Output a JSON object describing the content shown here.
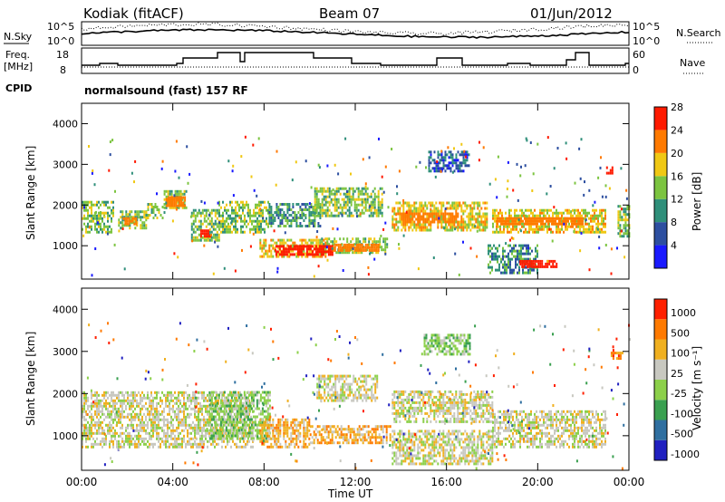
{
  "header": {
    "radar": "Kodiak (fitACF)",
    "beam": "Beam 07",
    "date": "01/Jun/2012"
  },
  "top_panels": {
    "nsky_label": "N.Sky",
    "nsearch_label": "N.Search",
    "nsky_ticks": [
      "10^5",
      "10^0"
    ],
    "nsearch_ticks": [
      "10^5",
      "10^0"
    ],
    "freq_label_1": "Freq.",
    "freq_label_2": "[MHz]",
    "freq_ticks": [
      "18",
      "8"
    ],
    "nave_label": "Nave",
    "nave_ticks": [
      "60",
      "0"
    ],
    "cpid_label": "CPID",
    "cpid_text": "normalsound (fast) 157 RF"
  },
  "chart_data": [
    {
      "type": "heatmap",
      "panel": "power",
      "ylabel": "Slant Range [km]",
      "yticks": [
        "1000",
        "2000",
        "3000",
        "4000"
      ],
      "ylim": [
        180,
        4500
      ],
      "colorbar_label": "Power [dB]",
      "colorbar_ticks": [
        "4",
        "8",
        "12",
        "16",
        "20",
        "24",
        "28"
      ],
      "colorbar_colors": [
        "#1a1aff",
        "#2d4fa0",
        "#2f8f7a",
        "#7cc440",
        "#f0c814",
        "#ff7a00",
        "#ff1a00"
      ],
      "xticks": [
        "00:00",
        "04:00",
        "08:00",
        "12:00",
        "16:00",
        "20:00",
        "00:00"
      ],
      "xlim_hours": [
        0,
        24
      ],
      "bands": [
        {
          "t0": 0.0,
          "t1": 1.4,
          "r0": 1300,
          "r1": 2050,
          "level": 3
        },
        {
          "t0": 1.6,
          "t1": 2.8,
          "r0": 1400,
          "r1": 1850,
          "level": 3
        },
        {
          "t0": 2.8,
          "t1": 3.6,
          "r0": 1650,
          "r1": 2050,
          "level": 3
        },
        {
          "t0": 3.6,
          "t1": 4.6,
          "r0": 1900,
          "r1": 2350,
          "level": 3
        },
        {
          "t0": 4.8,
          "t1": 6.0,
          "r0": 1100,
          "r1": 1900,
          "level": 3
        },
        {
          "t0": 6.0,
          "t1": 8.2,
          "r0": 1300,
          "r1": 2050,
          "level": 3
        },
        {
          "t0": 7.8,
          "t1": 10.8,
          "r0": 700,
          "r1": 1150,
          "level": 4
        },
        {
          "t0": 8.2,
          "t1": 10.5,
          "r0": 1450,
          "r1": 2000,
          "level": 2
        },
        {
          "t0": 10.5,
          "t1": 13.4,
          "r0": 800,
          "r1": 1200,
          "level": 3
        },
        {
          "t0": 10.2,
          "t1": 13.2,
          "r0": 1700,
          "r1": 2400,
          "level": 3
        },
        {
          "t0": 13.6,
          "t1": 17.8,
          "r0": 1350,
          "r1": 2050,
          "level": 4
        },
        {
          "t0": 15.2,
          "t1": 17.0,
          "r0": 2800,
          "r1": 3300,
          "level": 1
        },
        {
          "t0": 18.0,
          "t1": 23.0,
          "r0": 1300,
          "r1": 1850,
          "level": 4
        },
        {
          "t0": 17.8,
          "t1": 20.0,
          "r0": 300,
          "r1": 1000,
          "level": 2
        },
        {
          "t0": 23.5,
          "t1": 24.0,
          "r0": 1200,
          "r1": 2000,
          "level": 3
        }
      ],
      "cores": [
        {
          "t0": 8.5,
          "t1": 11.0,
          "r0": 750,
          "r1": 1000,
          "level": 6
        },
        {
          "t0": 11.0,
          "t1": 13.0,
          "r0": 850,
          "r1": 1000,
          "level": 5
        },
        {
          "t0": 3.7,
          "t1": 4.5,
          "r0": 1950,
          "r1": 2200,
          "level": 5
        },
        {
          "t0": 5.2,
          "t1": 5.6,
          "r0": 1200,
          "r1": 1400,
          "level": 6
        },
        {
          "t0": 14.0,
          "t1": 16.5,
          "r0": 1550,
          "r1": 1800,
          "level": 5
        },
        {
          "t0": 18.2,
          "t1": 22.0,
          "r0": 1500,
          "r1": 1700,
          "level": 5
        },
        {
          "t0": 19.2,
          "t1": 20.8,
          "r0": 450,
          "r1": 650,
          "level": 6
        },
        {
          "t0": 1.8,
          "t1": 2.4,
          "r0": 1500,
          "r1": 1650,
          "level": 5
        },
        {
          "t0": 23.0,
          "t1": 23.3,
          "r0": 2750,
          "r1": 2950,
          "level": 6
        }
      ]
    },
    {
      "type": "heatmap",
      "panel": "velocity",
      "ylabel": "Slant Range [km]",
      "yticks": [
        "1000",
        "2000",
        "3000",
        "4000"
      ],
      "ylim": [
        180,
        4500
      ],
      "xlabel": "Time UT",
      "xticks": [
        "00:00",
        "04:00",
        "08:00",
        "12:00",
        "16:00",
        "20:00",
        "00:00"
      ],
      "xlim_hours": [
        0,
        24
      ],
      "colorbar_label": "Velocity [m s⁻¹]",
      "colorbar_ticks": [
        "1000",
        "500",
        "100",
        "25",
        "-25",
        "-100",
        "-500",
        "-1000"
      ],
      "colorbar_colors": [
        "#2020c0",
        "#2f6fa0",
        "#3aa050",
        "#8cd04a",
        "#c8c8c0",
        "#f0b020",
        "#ff7a00",
        "#ff2000"
      ],
      "bands": [
        {
          "t0": 0.0,
          "t1": 7.5,
          "r0": 700,
          "r1": 2050,
          "level": 4
        },
        {
          "t0": 5.6,
          "t1": 8.3,
          "r0": 900,
          "r1": 2000,
          "level": 3
        },
        {
          "t0": 7.8,
          "t1": 10.0,
          "r0": 700,
          "r1": 1400,
          "level": 5
        },
        {
          "t0": 10.0,
          "t1": 13.5,
          "r0": 800,
          "r1": 1200,
          "level": 5
        },
        {
          "t0": 10.3,
          "t1": 13.0,
          "r0": 1800,
          "r1": 2400,
          "level": 4
        },
        {
          "t0": 13.6,
          "t1": 18.0,
          "r0": 1300,
          "r1": 2050,
          "level": 4
        },
        {
          "t0": 18.0,
          "t1": 23.0,
          "r0": 700,
          "r1": 1600,
          "level": 4
        },
        {
          "t0": 13.6,
          "t1": 18.0,
          "r0": 300,
          "r1": 1100,
          "level": 4
        },
        {
          "t0": 15.0,
          "t1": 17.0,
          "r0": 2900,
          "r1": 3400,
          "level": 3
        },
        {
          "t0": 23.2,
          "t1": 23.7,
          "r0": 2800,
          "r1": 3000,
          "level": 6
        }
      ],
      "cores": []
    }
  ]
}
